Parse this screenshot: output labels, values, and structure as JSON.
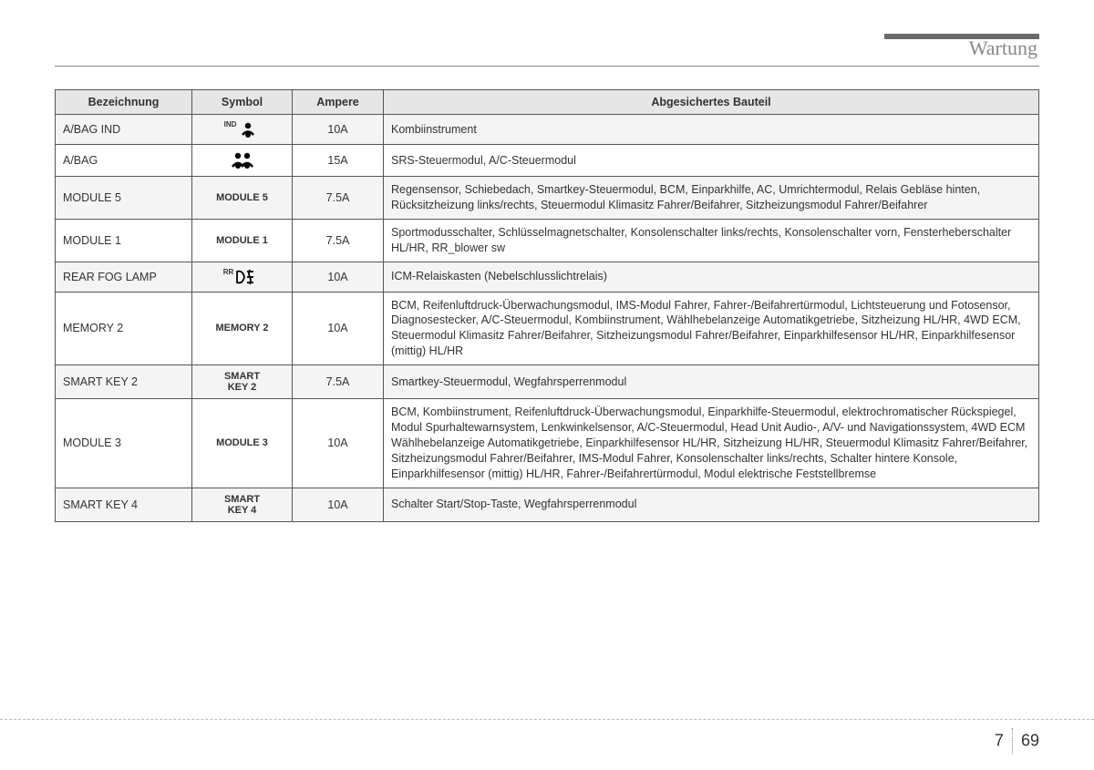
{
  "header": {
    "title": "Wartung"
  },
  "table": {
    "headers": {
      "designation": "Bezeichnung",
      "symbol": "Symbol",
      "ampere": "Ampere",
      "component": "Abgesichertes Bauteil"
    },
    "rows": [
      {
        "designation": "A/BAG IND",
        "symbol_type": "icon-airbag-ind",
        "symbol_text": "",
        "ampere": "10A",
        "component": "Kombiinstrument"
      },
      {
        "designation": "A/BAG",
        "symbol_type": "icon-airbag",
        "symbol_text": "",
        "ampere": "15A",
        "component": "SRS-Steuermodul, A/C-Steuermodul"
      },
      {
        "designation": "MODULE 5",
        "symbol_type": "text",
        "symbol_text": "MODULE 5",
        "ampere": "7.5A",
        "component": "Regensensor, Schiebedach, Smartkey-Steuermodul, BCM, Einparkhilfe, AC, Umrichtermodul, Relais Gebläse hinten, Rücksitzheizung links/rechts, Steuermodul Klimasitz Fahrer/Beifahrer, Sitzheizungsmodul Fahrer/Beifahrer"
      },
      {
        "designation": "MODULE 1",
        "symbol_type": "text",
        "symbol_text": "MODULE 1",
        "ampere": "7.5A",
        "component": "Sportmodusschalter, Schlüsselmagnetschalter, Konsolenschalter links/rechts, Konsolenschalter vorn, Fensterheberschalter HL/HR, RR_blower sw"
      },
      {
        "designation": "REAR FOG LAMP",
        "symbol_type": "icon-fog",
        "symbol_text": "",
        "ampere": "10A",
        "component": "ICM-Relaiskasten (Nebelschlusslichtrelais)"
      },
      {
        "designation": "MEMORY 2",
        "symbol_type": "text",
        "symbol_text": "MEMORY 2",
        "ampere": "10A",
        "component": "BCM, Reifenluftdruck-Überwachungsmodul, IMS-Modul Fahrer, Fahrer-/Beifahrertürmodul, Lichtsteuerung und Fotosensor, Diagnosestecker, A/C-Steuermodul, Kombiinstrument, Wählhebelanzeige Automatikgetriebe, Sitzheizung HL/HR, 4WD ECM, Steuermodul Klimasitz Fahrer/Beifahrer, Sitzheizungsmodul Fahrer/Beifahrer, Einparkhilfesensor HL/HR, Einparkhilfesensor (mittig) HL/HR"
      },
      {
        "designation": "SMART KEY 2",
        "symbol_type": "text-2line",
        "symbol_text": "SMART\nKEY 2",
        "ampere": "7.5A",
        "component": "Smartkey-Steuermodul, Wegfahrsperrenmodul"
      },
      {
        "designation": "MODULE 3",
        "symbol_type": "text",
        "symbol_text": "MODULE 3",
        "ampere": "10A",
        "component": "BCM, Kombiinstrument, Reifenluftdruck-Überwachungsmodul, Einparkhilfe-Steuermodul, elektrochromatischer Rückspiegel, Modul Spurhaltewarnsystem, Lenkwinkelsensor, A/C-Steuermodul, Head Unit Audio-, A/V- und Navigationssystem, 4WD ECM Wählhebelanzeige Automatikgetriebe, Einparkhilfesensor HL/HR, Sitzheizung HL/HR, Steuermodul Klimasitz Fahrer/Beifahrer, Sitzheizungsmodul Fahrer/Beifahrer, IMS-Modul Fahrer, Konsolenschalter links/rechts, Schalter hintere Konsole, Einparkhilfesensor (mittig) HL/HR, Fahrer-/Beifahrertürmodul, Modul elektrische Feststellbremse"
      },
      {
        "designation": "SMART KEY 4",
        "symbol_type": "text-2line",
        "symbol_text": "SMART\nKEY 4",
        "ampere": "10A",
        "component": "Schalter Start/Stop-Taste, Wegfahrsperrenmodul"
      }
    ]
  },
  "footer": {
    "chapter": "7",
    "page": "69"
  },
  "colors": {
    "header_text": "#888888",
    "accent_bar": "#6b6b6b",
    "table_border": "#555555",
    "row_alt_bg": "#f4f4f4",
    "header_bg": "#e6e6e6"
  }
}
